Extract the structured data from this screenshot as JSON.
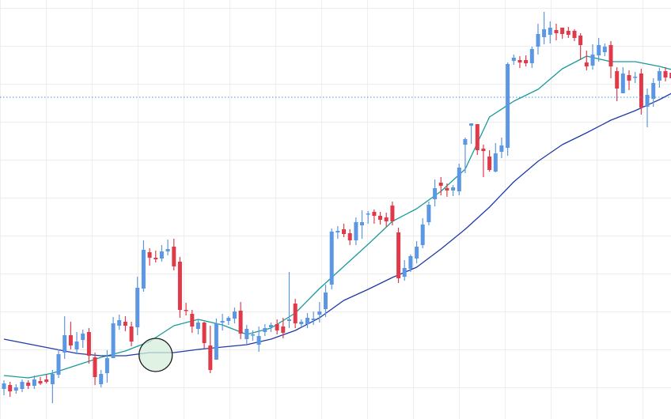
{
  "chart_data": {
    "type": "candlestick",
    "title": "",
    "xlabel": "",
    "ylabel": "",
    "ylim": [
      0,
      530
    ],
    "grid": true,
    "colors": {
      "up": "#5b97e3",
      "down": "#e03a4a",
      "fast_ma": "#1a9a9a",
      "slow_ma": "#1f3aa8",
      "grid": "#eeeeee",
      "price_line": "#4a90d9",
      "marker_fill": "#d4edd9",
      "marker_stroke": "#1a1a1a"
    },
    "price_line": 407,
    "marker": {
      "x": 25,
      "y": 81
    },
    "candles": [
      {
        "x": 0,
        "o": 38,
        "c": 45,
        "h": 49,
        "l": 30
      },
      {
        "x": 1,
        "o": 43,
        "c": 35,
        "h": 47,
        "l": 28
      },
      {
        "x": 2,
        "o": 36,
        "c": 40,
        "h": 44,
        "l": 32
      },
      {
        "x": 3,
        "o": 38,
        "c": 47,
        "h": 50,
        "l": 34
      },
      {
        "x": 4,
        "o": 46,
        "c": 42,
        "h": 49,
        "l": 38
      },
      {
        "x": 5,
        "o": 42,
        "c": 50,
        "h": 55,
        "l": 38
      },
      {
        "x": 6,
        "o": 48,
        "c": 45,
        "h": 53,
        "l": 43
      },
      {
        "x": 7,
        "o": 50,
        "c": 47,
        "h": 56,
        "l": 45
      },
      {
        "x": 8,
        "o": 44,
        "c": 57,
        "h": 62,
        "l": 20
      },
      {
        "x": 9,
        "o": 56,
        "c": 82,
        "h": 88,
        "l": 52
      },
      {
        "x": 10,
        "o": 84,
        "c": 106,
        "h": 130,
        "l": 76
      },
      {
        "x": 11,
        "o": 106,
        "c": 93,
        "h": 123,
        "l": 88
      },
      {
        "x": 12,
        "o": 88,
        "c": 98,
        "h": 110,
        "l": 82
      },
      {
        "x": 13,
        "o": 100,
        "c": 108,
        "h": 113,
        "l": 90
      },
      {
        "x": 14,
        "o": 110,
        "c": 80,
        "h": 115,
        "l": 70
      },
      {
        "x": 15,
        "o": 78,
        "c": 53,
        "h": 84,
        "l": 43
      },
      {
        "x": 16,
        "o": 44,
        "c": 57,
        "h": 62,
        "l": 40
      },
      {
        "x": 17,
        "o": 58,
        "c": 77,
        "h": 87,
        "l": 46
      },
      {
        "x": 18,
        "o": 77,
        "c": 121,
        "h": 129,
        "l": 77
      },
      {
        "x": 19,
        "o": 118,
        "c": 125,
        "h": 132,
        "l": 113
      },
      {
        "x": 20,
        "o": 123,
        "c": 118,
        "h": 130,
        "l": 111
      },
      {
        "x": 21,
        "o": 117,
        "c": 98,
        "h": 123,
        "l": 92
      },
      {
        "x": 22,
        "o": 116,
        "c": 166,
        "h": 180,
        "l": 106
      },
      {
        "x": 23,
        "o": 165,
        "c": 214,
        "h": 226,
        "l": 161
      },
      {
        "x": 24,
        "o": 211,
        "c": 204,
        "h": 216,
        "l": 194
      },
      {
        "x": 25,
        "o": 204,
        "c": 202,
        "h": 213,
        "l": 198
      },
      {
        "x": 26,
        "o": 203,
        "c": 212,
        "h": 220,
        "l": 199
      },
      {
        "x": 27,
        "o": 212,
        "c": 215,
        "h": 227,
        "l": 207
      },
      {
        "x": 28,
        "o": 218,
        "c": 193,
        "h": 228,
        "l": 188
      },
      {
        "x": 29,
        "o": 199,
        "c": 138,
        "h": 205,
        "l": 128
      },
      {
        "x": 30,
        "o": 138,
        "c": 137,
        "h": 147,
        "l": 131
      },
      {
        "x": 31,
        "o": 133,
        "c": 117,
        "h": 138,
        "l": 109
      },
      {
        "x": 32,
        "o": 114,
        "c": 122,
        "h": 126,
        "l": 107
      },
      {
        "x": 33,
        "o": 122,
        "c": 96,
        "h": 123,
        "l": 89
      },
      {
        "x": 34,
        "o": 93,
        "c": 62,
        "h": 118,
        "l": 58
      },
      {
        "x": 35,
        "o": 75,
        "c": 121,
        "h": 127,
        "l": 75
      },
      {
        "x": 36,
        "o": 122,
        "c": 124,
        "h": 133,
        "l": 112
      },
      {
        "x": 37,
        "o": 124,
        "c": 128,
        "h": 130,
        "l": 119
      },
      {
        "x": 38,
        "o": 127,
        "c": 136,
        "h": 141,
        "l": 121
      },
      {
        "x": 39,
        "o": 137,
        "c": 108,
        "h": 148,
        "l": 101
      },
      {
        "x": 40,
        "o": 101,
        "c": 114,
        "h": 119,
        "l": 95
      },
      {
        "x": 41,
        "o": 106,
        "c": 107,
        "h": 112,
        "l": 99
      },
      {
        "x": 42,
        "o": 94,
        "c": 105,
        "h": 117,
        "l": 85
      },
      {
        "x": 43,
        "o": 110,
        "c": 115,
        "h": 120,
        "l": 105
      },
      {
        "x": 44,
        "o": 116,
        "c": 119,
        "h": 122,
        "l": 110
      },
      {
        "x": 45,
        "o": 120,
        "c": 112,
        "h": 126,
        "l": 107
      },
      {
        "x": 46,
        "o": 117,
        "c": 109,
        "h": 128,
        "l": 102
      },
      {
        "x": 47,
        "o": 124,
        "c": 126,
        "h": 186,
        "l": 115
      },
      {
        "x": 48,
        "o": 146,
        "c": 121,
        "h": 152,
        "l": 115
      },
      {
        "x": 49,
        "o": 120,
        "c": 123,
        "h": 126,
        "l": 116
      },
      {
        "x": 50,
        "o": 120,
        "c": 128,
        "h": 134,
        "l": 115
      },
      {
        "x": 51,
        "o": 125,
        "c": 127,
        "h": 136,
        "l": 119
      },
      {
        "x": 52,
        "o": 132,
        "c": 136,
        "h": 148,
        "l": 122
      },
      {
        "x": 53,
        "o": 139,
        "c": 160,
        "h": 170,
        "l": 129
      },
      {
        "x": 54,
        "o": 170,
        "c": 237,
        "h": 241,
        "l": 164
      },
      {
        "x": 55,
        "o": 236,
        "c": 238,
        "h": 244,
        "l": 228
      },
      {
        "x": 56,
        "o": 240,
        "c": 234,
        "h": 247,
        "l": 230
      },
      {
        "x": 57,
        "o": 235,
        "c": 226,
        "h": 240,
        "l": 220
      },
      {
        "x": 58,
        "o": 226,
        "c": 249,
        "h": 255,
        "l": 220
      },
      {
        "x": 59,
        "o": 245,
        "c": 249,
        "h": 264,
        "l": 228
      },
      {
        "x": 60,
        "o": 259,
        "c": 260,
        "h": 263,
        "l": 247
      },
      {
        "x": 61,
        "o": 262,
        "c": 257,
        "h": 265,
        "l": 247
      },
      {
        "x": 62,
        "o": 257,
        "c": 252,
        "h": 262,
        "l": 246
      },
      {
        "x": 63,
        "o": 255,
        "c": 250,
        "h": 261,
        "l": 243
      },
      {
        "x": 64,
        "o": 270,
        "c": 250,
        "h": 275,
        "l": 245
      },
      {
        "x": 65,
        "o": 236,
        "c": 178,
        "h": 242,
        "l": 172
      },
      {
        "x": 66,
        "o": 180,
        "c": 191,
        "h": 201,
        "l": 175
      },
      {
        "x": 67,
        "o": 190,
        "c": 206,
        "h": 208,
        "l": 186
      },
      {
        "x": 68,
        "o": 203,
        "c": 218,
        "h": 225,
        "l": 197
      },
      {
        "x": 69,
        "o": 220,
        "c": 246,
        "h": 254,
        "l": 216
      },
      {
        "x": 70,
        "o": 249,
        "c": 271,
        "h": 275,
        "l": 245
      },
      {
        "x": 71,
        "o": 278,
        "c": 292,
        "h": 303,
        "l": 269
      },
      {
        "x": 72,
        "o": 299,
        "c": 295,
        "h": 306,
        "l": 283
      },
      {
        "x": 73,
        "o": 292,
        "c": 289,
        "h": 298,
        "l": 281
      },
      {
        "x": 74,
        "o": 289,
        "c": 293,
        "h": 296,
        "l": 282
      },
      {
        "x": 75,
        "o": 288,
        "c": 318,
        "h": 323,
        "l": 283
      },
      {
        "x": 76,
        "o": 347,
        "c": 354,
        "h": 356,
        "l": 311
      },
      {
        "x": 77,
        "o": 371,
        "c": 374,
        "h": 373,
        "l": 348
      },
      {
        "x": 78,
        "o": 373,
        "c": 340,
        "h": 373,
        "l": 334
      },
      {
        "x": 79,
        "o": 342,
        "c": 339,
        "h": 347,
        "l": 306
      },
      {
        "x": 80,
        "o": 332,
        "c": 315,
        "h": 340,
        "l": 313
      },
      {
        "x": 81,
        "o": 313,
        "c": 336,
        "h": 349,
        "l": 312
      },
      {
        "x": 82,
        "o": 338,
        "c": 346,
        "h": 356,
        "l": 330
      },
      {
        "x": 83,
        "o": 343,
        "c": 449,
        "h": 451,
        "l": 333
      },
      {
        "x": 84,
        "o": 453,
        "c": 457,
        "h": 461,
        "l": 448
      },
      {
        "x": 85,
        "o": 454,
        "c": 451,
        "h": 459,
        "l": 444
      },
      {
        "x": 86,
        "o": 454,
        "c": 450,
        "h": 460,
        "l": 446
      },
      {
        "x": 87,
        "o": 450,
        "c": 468,
        "h": 471,
        "l": 444
      },
      {
        "x": 88,
        "o": 471,
        "c": 487,
        "h": 500,
        "l": 461
      },
      {
        "x": 89,
        "o": 483,
        "c": 493,
        "h": 515,
        "l": 474
      },
      {
        "x": 90,
        "o": 486,
        "c": 495,
        "h": 503,
        "l": 475
      },
      {
        "x": 91,
        "o": 492,
        "c": 488,
        "h": 500,
        "l": 479
      },
      {
        "x": 92,
        "o": 495,
        "c": 487,
        "h": 495,
        "l": 481
      },
      {
        "x": 93,
        "o": 491,
        "c": 486,
        "h": 496,
        "l": 482
      },
      {
        "x": 94,
        "o": 491,
        "c": 482,
        "h": 493,
        "l": 478
      },
      {
        "x": 95,
        "o": 485,
        "c": 473,
        "h": 488,
        "l": 454
      },
      {
        "x": 96,
        "o": 451,
        "c": 446,
        "h": 466,
        "l": 441
      },
      {
        "x": 97,
        "o": 447,
        "c": 461,
        "h": 474,
        "l": 442
      },
      {
        "x": 98,
        "o": 460,
        "c": 473,
        "h": 482,
        "l": 452
      },
      {
        "x": 99,
        "o": 464,
        "c": 471,
        "h": 475,
        "l": 459
      },
      {
        "x": 100,
        "o": 473,
        "c": 446,
        "h": 478,
        "l": 431
      },
      {
        "x": 101,
        "o": 440,
        "c": 418,
        "h": 445,
        "l": 402
      },
      {
        "x": 102,
        "o": 412,
        "c": 437,
        "h": 445,
        "l": 412
      },
      {
        "x": 103,
        "o": 435,
        "c": 428,
        "h": 441,
        "l": 416
      },
      {
        "x": 104,
        "o": 432,
        "c": 433,
        "h": 439,
        "l": 425
      },
      {
        "x": 105,
        "o": 437,
        "c": 394,
        "h": 443,
        "l": 385
      },
      {
        "x": 106,
        "o": 395,
        "c": 410,
        "h": 418,
        "l": 369
      },
      {
        "x": 107,
        "o": 405,
        "c": 425,
        "h": 431,
        "l": 395
      },
      {
        "x": 108,
        "o": 428,
        "c": 440,
        "h": 444,
        "l": 419
      },
      {
        "x": 109,
        "o": 440,
        "c": 432,
        "h": 445,
        "l": 427
      },
      {
        "x": 110,
        "o": 438,
        "c": 431,
        "h": 444,
        "l": 426
      }
    ],
    "series": [
      {
        "x": [
          0,
          4,
          8,
          12,
          16,
          20,
          24,
          28,
          32,
          36,
          40,
          44,
          48,
          52,
          56,
          60,
          64,
          68,
          72,
          76,
          80,
          84,
          88,
          92,
          96,
          100,
          104,
          108,
          110
        ],
        "values": [
          55,
          52,
          58,
          68,
          78,
          86,
          98,
          118,
          126,
          119,
          107,
          115,
          134,
          165,
          193,
          221,
          250,
          266,
          288,
          316,
          382,
          402,
          417,
          443,
          459,
          452,
          452,
          446,
          442
        ],
        "color": "#1a9a9a"
      },
      {
        "x": [
          0,
          4,
          8,
          12,
          16,
          20,
          24,
          28,
          32,
          36,
          40,
          44,
          48,
          52,
          56,
          60,
          64,
          68,
          72,
          76,
          80,
          84,
          88,
          92,
          96,
          100,
          104,
          108,
          110
        ],
        "values": [
          101,
          95,
          89,
          83,
          80,
          80,
          84,
          84,
          88,
          91,
          94,
          101,
          112,
          128,
          150,
          164,
          179,
          192,
          215,
          240,
          268,
          300,
          326,
          347,
          362,
          378,
          390,
          404,
          412
        ],
        "color": "#1f3aa8"
      }
    ]
  }
}
